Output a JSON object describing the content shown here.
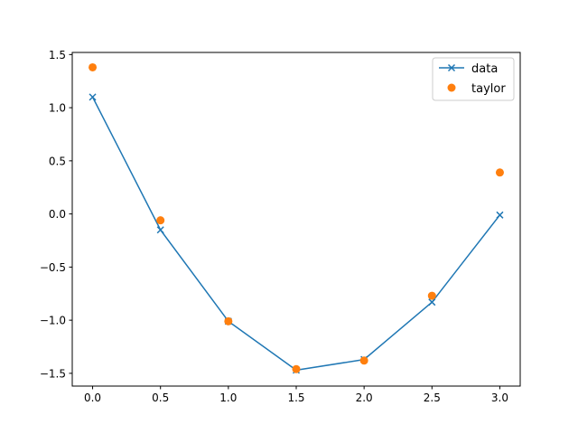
{
  "chart_data": {
    "type": "line",
    "title": "",
    "xlabel": "",
    "ylabel": "",
    "xlim": [
      -0.15,
      3.15
    ],
    "ylim": [
      -1.62,
      1.52
    ],
    "grid": false,
    "legend_position": "top-right",
    "x_ticks": [
      0.0,
      0.5,
      1.0,
      1.5,
      2.0,
      2.5,
      3.0
    ],
    "x_tick_labels": [
      "0.0",
      "0.5",
      "1.0",
      "1.5",
      "2.0",
      "2.5",
      "3.0"
    ],
    "y_ticks": [
      -1.5,
      -1.0,
      -0.5,
      0.0,
      0.5,
      1.0,
      1.5
    ],
    "y_tick_labels": [
      "−1.5",
      "−1.0",
      "−0.5",
      "0.0",
      "0.5",
      "1.0",
      "1.5"
    ],
    "series": [
      {
        "name": "data",
        "style": "line-x-marker",
        "color": "#1f77b4",
        "x": [
          0.0,
          0.5,
          1.0,
          1.5,
          2.0,
          2.5,
          3.0
        ],
        "y": [
          1.1,
          -0.15,
          -1.01,
          -1.47,
          -1.37,
          -0.83,
          -0.01
        ]
      },
      {
        "name": "taylor",
        "style": "dot",
        "color": "#ff7f0e",
        "x": [
          0.0,
          0.5,
          1.0,
          1.5,
          2.0,
          2.5,
          3.0
        ],
        "y": [
          1.38,
          -0.06,
          -1.01,
          -1.46,
          -1.38,
          -0.77,
          0.39
        ]
      }
    ]
  }
}
